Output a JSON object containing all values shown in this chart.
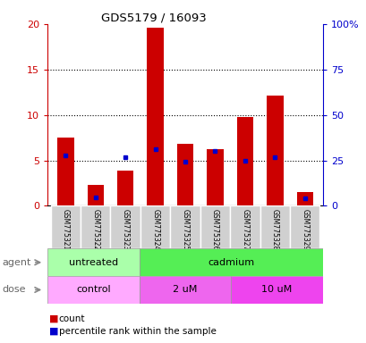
{
  "title": "GDS5179 / 16093",
  "samples": [
    "GSM775321",
    "GSM775322",
    "GSM775323",
    "GSM775324",
    "GSM775325",
    "GSM775326",
    "GSM775327",
    "GSM775328",
    "GSM775329"
  ],
  "counts": [
    7.5,
    2.3,
    3.9,
    19.6,
    6.8,
    6.2,
    9.8,
    12.1,
    1.5
  ],
  "percentiles": [
    27.5,
    4.5,
    26.5,
    31.0,
    24.5,
    30.0,
    25.0,
    26.5,
    4.0
  ],
  "ylim_left": [
    0,
    20
  ],
  "ylim_right": [
    0,
    100
  ],
  "yticks_left": [
    0,
    5,
    10,
    15,
    20
  ],
  "yticks_right": [
    0,
    25,
    50,
    75,
    100
  ],
  "ytick_labels_left": [
    "0",
    "5",
    "10",
    "15",
    "20"
  ],
  "ytick_labels_right": [
    "0",
    "25",
    "50",
    "75",
    "100%"
  ],
  "bar_color": "#cc0000",
  "dot_color": "#0000cc",
  "agent_groups": [
    {
      "label": "untreated",
      "start": 0,
      "end": 3,
      "color": "#aaffaa"
    },
    {
      "label": "cadmium",
      "start": 3,
      "end": 9,
      "color": "#55ee55"
    }
  ],
  "dose_groups": [
    {
      "label": "control",
      "start": 0,
      "end": 3,
      "color": "#ffaaff"
    },
    {
      "label": "2 uM",
      "start": 3,
      "end": 6,
      "color": "#ee66ee"
    },
    {
      "label": "10 uM",
      "start": 6,
      "end": 9,
      "color": "#ee44ee"
    }
  ],
  "legend_count_label": "count",
  "legend_percentile_label": "percentile rank within the sample",
  "agent_label": "agent",
  "dose_label": "dose",
  "left_axis_color": "#cc0000",
  "right_axis_color": "#0000cc",
  "label_bg_color": "#d0d0d0",
  "label_border_color": "#ffffff"
}
